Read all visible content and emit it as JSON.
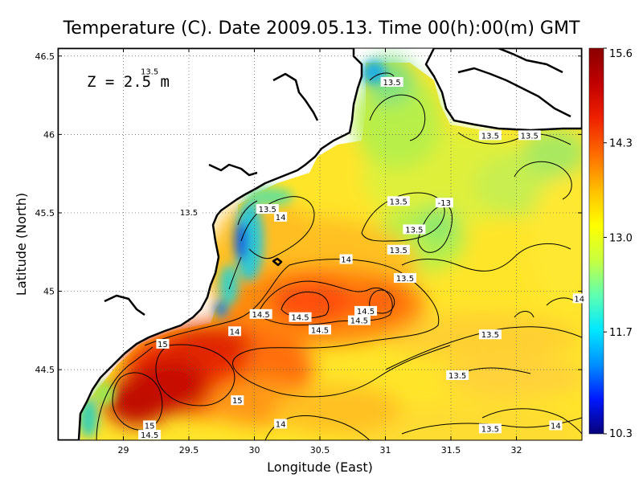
{
  "title": "Temperature (C). Date 2009.05.13. Time 00(h):00(m) GMT",
  "depth_label": "Z = 2.5 m",
  "chart_data": {
    "type": "heatmap",
    "title": "Temperature (C). Date 2009.05.13. Time 00(h):00(m) GMT",
    "xlabel": "Longitude (East)",
    "ylabel": "Latitude (North)",
    "xlim": [
      28.5,
      32.5
    ],
    "ylim": [
      44.05,
      46.55
    ],
    "x_ticks": [
      29,
      29.5,
      30,
      30.5,
      31,
      31.5,
      32
    ],
    "x_tick_labels": [
      "29",
      "29.5",
      "30",
      "30.5",
      "31",
      "31.5",
      "32"
    ],
    "y_ticks": [
      44.5,
      45,
      45.5,
      46,
      46.5
    ],
    "y_tick_labels": [
      "44.5",
      "45",
      "45.5",
      "46",
      "46.5"
    ],
    "grid": true,
    "colorbar": {
      "min": 10.3,
      "max": 15.6,
      "ticks": [
        10.3,
        11.7,
        13.0,
        14.3,
        15.6
      ],
      "tick_labels": [
        "10.3",
        "11.7",
        "13.0",
        "14.3",
        "15.6"
      ],
      "colors": [
        "#08007a",
        "#0018ff",
        "#0090ff",
        "#00e8ff",
        "#60ffb0",
        "#c8ff40",
        "#ffff00",
        "#ffc000",
        "#ff7000",
        "#ee2000",
        "#c00000",
        "#8a0000"
      ]
    },
    "contour_labels": [
      {
        "lon": 29.2,
        "lat": 46.4,
        "text": "13.5"
      },
      {
        "lon": 29.5,
        "lat": 45.5,
        "text": "13.5"
      },
      {
        "lon": 30.1,
        "lat": 45.52,
        "text": "13.5"
      },
      {
        "lon": 30.2,
        "lat": 45.47,
        "text": "14"
      },
      {
        "lon": 30.7,
        "lat": 45.2,
        "text": "14"
      },
      {
        "lon": 31.1,
        "lat": 45.57,
        "text": "13.5"
      },
      {
        "lon": 31.22,
        "lat": 45.39,
        "text": "13.5"
      },
      {
        "lon": 31.45,
        "lat": 45.56,
        "text": "-13"
      },
      {
        "lon": 31.1,
        "lat": 45.26,
        "text": "13.5"
      },
      {
        "lon": 31.15,
        "lat": 45.08,
        "text": "13.5"
      },
      {
        "lon": 31.05,
        "lat": 46.33,
        "text": "13.5"
      },
      {
        "lon": 31.8,
        "lat": 45.99,
        "text": "13.5"
      },
      {
        "lon": 32.1,
        "lat": 45.99,
        "text": "13.5"
      },
      {
        "lon": 30.05,
        "lat": 44.85,
        "text": "14.5"
      },
      {
        "lon": 30.35,
        "lat": 44.83,
        "text": "14.5"
      },
      {
        "lon": 30.5,
        "lat": 44.75,
        "text": "14.5"
      },
      {
        "lon": 30.85,
        "lat": 44.87,
        "text": "14.5"
      },
      {
        "lon": 30.8,
        "lat": 44.81,
        "text": "14.5"
      },
      {
        "lon": 29.85,
        "lat": 44.74,
        "text": "14"
      },
      {
        "lon": 29.3,
        "lat": 44.66,
        "text": "15"
      },
      {
        "lon": 29.87,
        "lat": 44.3,
        "text": "15"
      },
      {
        "lon": 29.2,
        "lat": 44.14,
        "text": "15"
      },
      {
        "lon": 29.2,
        "lat": 44.08,
        "text": "14.5"
      },
      {
        "lon": 30.2,
        "lat": 44.15,
        "text": "14"
      },
      {
        "lon": 31.55,
        "lat": 44.46,
        "text": "13.5"
      },
      {
        "lon": 31.8,
        "lat": 44.72,
        "text": "13.5"
      },
      {
        "lon": 31.8,
        "lat": 44.12,
        "text": "13.5"
      },
      {
        "lon": 32.3,
        "lat": 44.14,
        "text": "14"
      },
      {
        "lon": 32.48,
        "lat": 44.95,
        "text": "14"
      }
    ]
  }
}
